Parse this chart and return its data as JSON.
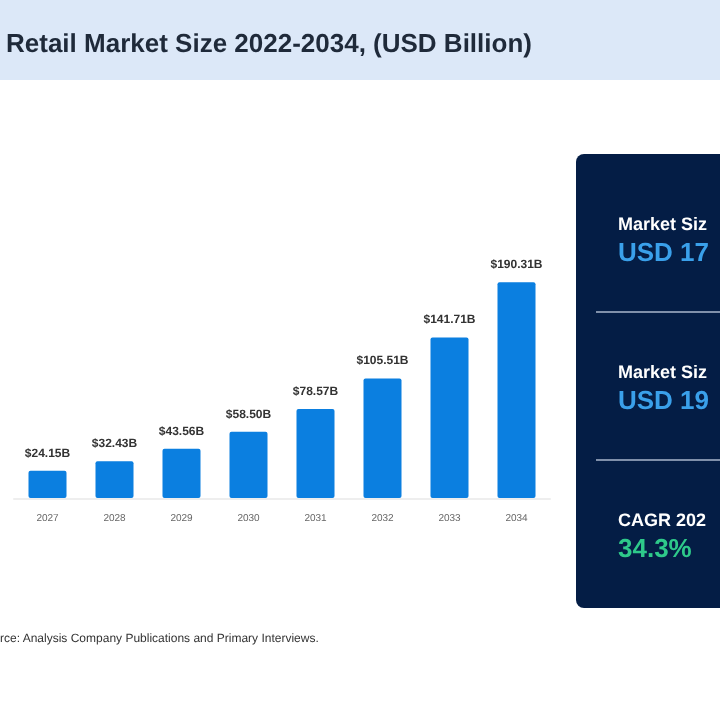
{
  "chart_data": {
    "type": "bar",
    "title": "Retail Market Size 2022-2034, (USD Billion)",
    "categories": [
      "2027",
      "2028",
      "2029",
      "2030",
      "2031",
      "2032",
      "2033",
      "2034"
    ],
    "values": [
      24.15,
      32.43,
      43.56,
      58.5,
      78.57,
      105.51,
      141.71,
      190.31
    ],
    "value_labels": [
      "$24.15B",
      "$32.43B",
      "$43.56B",
      "$58.50B",
      "$78.57B",
      "$105.51B",
      "$141.71B",
      "$190.31B"
    ],
    "color": "#0b7fe0",
    "annotations": [
      "Market Siz",
      "USD 17",
      "Market Siz",
      "USD 19",
      "CAGR 202",
      "34.3%",
      "rce: Analysis Company Publications and Primary Interviews."
    ]
  }
}
